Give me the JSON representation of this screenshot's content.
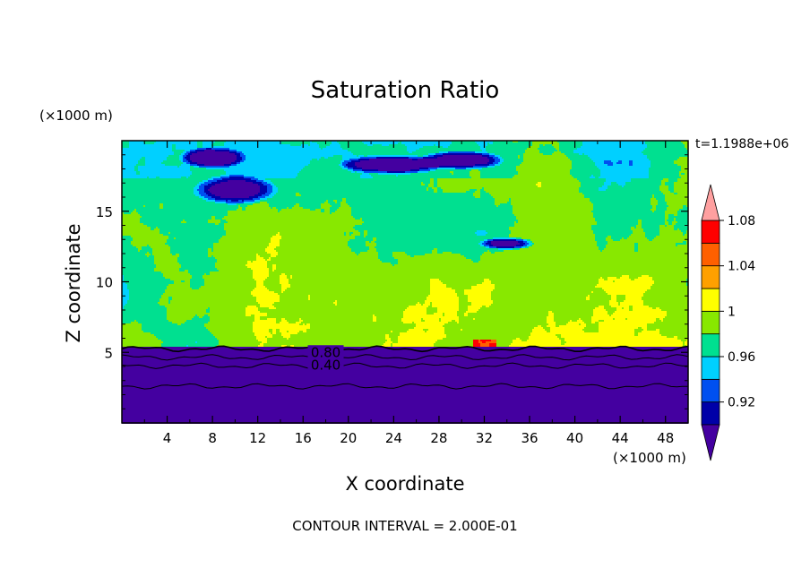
{
  "chart_data": {
    "type": "heatmap",
    "title": "Saturation Ratio",
    "xlabel": "X coordinate",
    "ylabel": "Z coordinate",
    "x_unit": "(×1000 m)",
    "y_unit": "(×1000 m)",
    "time_label": "t=1.1988e+06",
    "footer": "CONTOUR INTERVAL = 2.000E-01",
    "xlim": [
      0,
      50
    ],
    "ylim": [
      0,
      20
    ],
    "xticks": [
      4,
      8,
      12,
      16,
      20,
      24,
      28,
      32,
      36,
      40,
      44,
      48
    ],
    "yticks": [
      5,
      10,
      15
    ],
    "colorbar": {
      "levels": [
        0.92,
        0.94,
        0.96,
        0.98,
        1.0,
        1.02,
        1.04,
        1.06,
        1.08,
        1.1
      ],
      "tick_labels": [
        "0.92",
        "0.96",
        "1",
        "1.04",
        "1.08"
      ],
      "colors": [
        "#4400a0",
        "#0000a8",
        "#0050f0",
        "#00d0ff",
        "#00e090",
        "#88e800",
        "#ffff00",
        "#ffa000",
        "#ff6000",
        "#ff0000",
        "#ffa0a0"
      ]
    },
    "contour_labels": [
      {
        "text": "0.80",
        "x": 18,
        "y": 5.0
      },
      {
        "text": "0.40",
        "x": 18,
        "y": 4.1
      }
    ]
  }
}
